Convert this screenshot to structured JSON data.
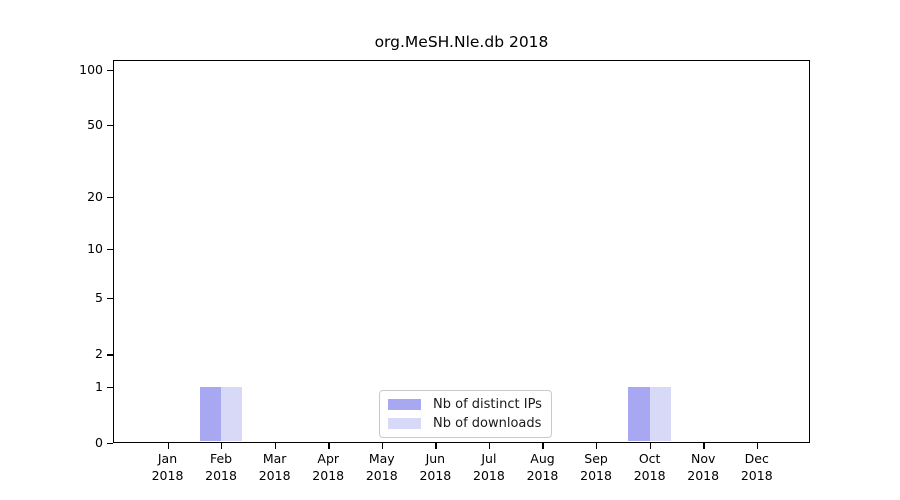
{
  "title": "org.MeSH.Nle.db 2018",
  "chart_data": {
    "type": "bar",
    "title": "org.MeSH.Nle.db 2018",
    "categories": [
      "Jan 2018",
      "Feb 2018",
      "Mar 2018",
      "Apr 2018",
      "May 2018",
      "Jun 2018",
      "Jul 2018",
      "Aug 2018",
      "Sep 2018",
      "Oct 2018",
      "Nov 2018",
      "Dec 2018"
    ],
    "series": [
      {
        "name": "Nb of distinct IPs",
        "color": "#a8a8f2",
        "values": [
          0,
          1,
          0,
          0,
          0,
          0,
          0,
          0,
          0,
          1,
          0,
          0
        ]
      },
      {
        "name": "Nb of downloads",
        "color": "#d8d8f7",
        "values": [
          0,
          1,
          0,
          0,
          0,
          0,
          0,
          0,
          0,
          1,
          0,
          0
        ]
      }
    ],
    "yscale": "log1p",
    "ylim": [
      0,
      113
    ],
    "y_major_ticks": [
      0,
      1,
      2,
      5,
      10,
      20,
      50,
      100
    ],
    "y_minor_ticks": [
      3,
      4,
      6,
      7,
      8,
      9,
      30,
      40,
      60,
      70,
      80,
      90
    ],
    "grid": "horizontal",
    "legend_position": "bottom-center"
  },
  "legend": {
    "items": [
      {
        "label": "Nb of distinct IPs",
        "color": "#a8a8f2"
      },
      {
        "label": "Nb of downloads",
        "color": "#d8d8f7"
      }
    ]
  }
}
